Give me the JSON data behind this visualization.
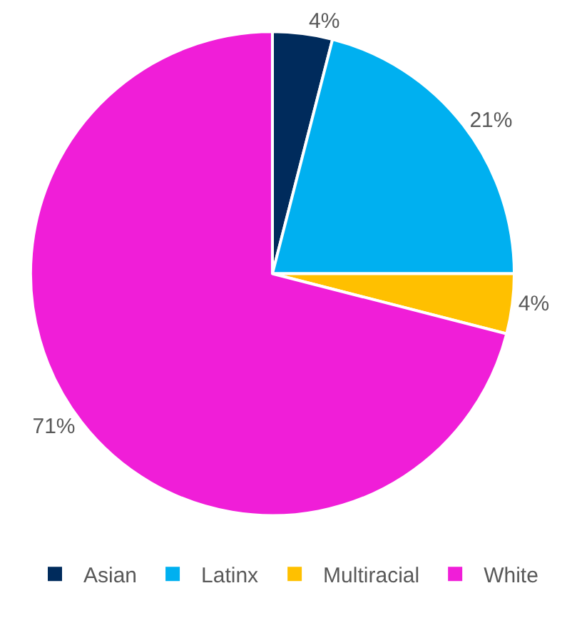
{
  "chart_data": {
    "type": "pie",
    "categories": [
      "Asian",
      "Latinx",
      "Multiracial",
      "White"
    ],
    "values": [
      4,
      21,
      4,
      71
    ],
    "colors": [
      "#002b5c",
      "#00b0f0",
      "#ffc000",
      "#f01ed8"
    ],
    "value_labels": [
      "4%",
      "21%",
      "4%",
      "71%"
    ],
    "legend": "bottom"
  }
}
